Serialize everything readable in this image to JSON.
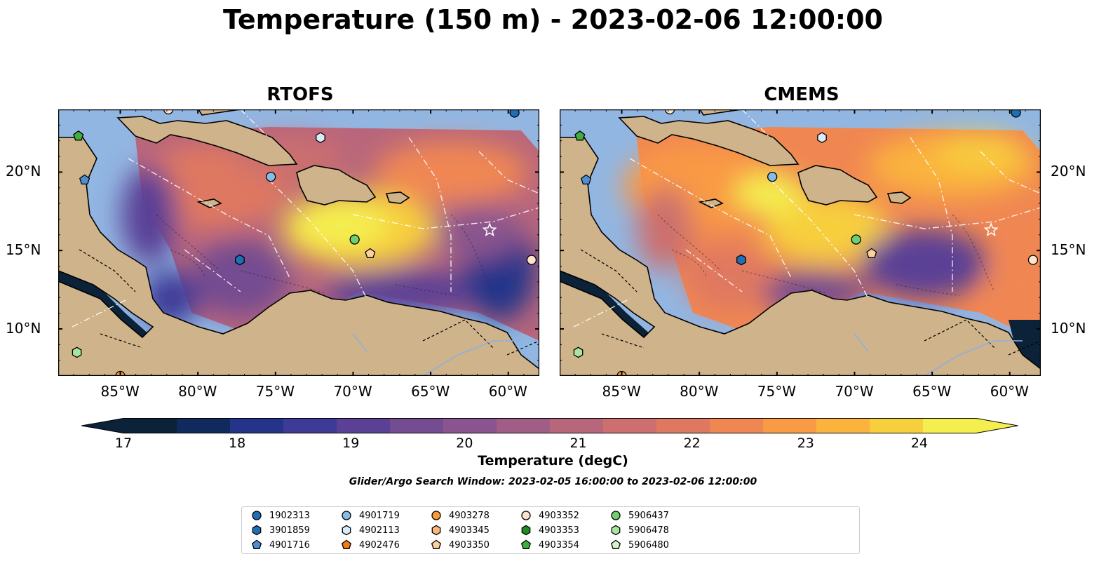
{
  "title": "Temperature (150 m) - 2023-02-06 12:00:00",
  "panels": [
    {
      "title": "RTOFS"
    },
    {
      "title": "CMEMS"
    }
  ],
  "axes": {
    "lon_ticks": [
      "85°W",
      "80°W",
      "75°W",
      "70°W",
      "65°W",
      "60°W"
    ],
    "lat_ticks": [
      "20°N",
      "15°N",
      "10°N"
    ],
    "lon_range": [
      -89,
      -58
    ],
    "lat_range": [
      7,
      24
    ]
  },
  "colorbar": {
    "label": "Temperature (degC)",
    "ticks": [
      "17",
      "18",
      "19",
      "20",
      "21",
      "22",
      "23",
      "24"
    ],
    "min": 17,
    "max": 24.5,
    "extend": "both",
    "colors": [
      "#0b2238",
      "#102a5e",
      "#24348a",
      "#3d3a98",
      "#5a4196",
      "#744c91",
      "#8a558e",
      "#a05e87",
      "#b8667c",
      "#cc6f6e",
      "#df7860",
      "#f08752",
      "#f99a45",
      "#fbb33e",
      "#f7cf3d",
      "#f4ee4f"
    ]
  },
  "search_window": "Glider/Argo Search Window: 2023-02-05 16:00:00 to 2023-02-06 12:00:00",
  "legend": {
    "items": [
      {
        "id": "1902313",
        "shape": "circle",
        "color": "#1f6fb4"
      },
      {
        "id": "3901859",
        "shape": "hexagon",
        "color": "#1f6fb4"
      },
      {
        "id": "4901716",
        "shape": "pentagon",
        "color": "#4d8fd0"
      },
      {
        "id": "4901719",
        "shape": "circle",
        "color": "#86bde8"
      },
      {
        "id": "4902113",
        "shape": "hexagon",
        "color": "#dbeaf8"
      },
      {
        "id": "4902476",
        "shape": "pentagon",
        "color": "#f07d14"
      },
      {
        "id": "4903278",
        "shape": "circle",
        "color": "#fb9a38"
      },
      {
        "id": "4903345",
        "shape": "hexagon",
        "color": "#fcb57a"
      },
      {
        "id": "4903350",
        "shape": "pentagon",
        "color": "#fdd0a2"
      },
      {
        "id": "4903352",
        "shape": "circle",
        "color": "#fde2cc"
      },
      {
        "id": "4903353",
        "shape": "hexagon",
        "color": "#238b23"
      },
      {
        "id": "4903354",
        "shape": "pentagon",
        "color": "#3fae3f"
      },
      {
        "id": "5906437",
        "shape": "circle",
        "color": "#6fcf6f"
      },
      {
        "id": "5906478",
        "shape": "hexagon",
        "color": "#a8e6a0"
      },
      {
        "id": "5906480",
        "shape": "pentagon",
        "color": "#d4f5cc"
      }
    ]
  },
  "markers": [
    {
      "id": "4903352",
      "lon": -81.9,
      "lat": 24.0
    },
    {
      "id": "1902313",
      "lon": -59.6,
      "lat": 23.8
    },
    {
      "id": "4903354",
      "lon": -87.7,
      "lat": 22.3
    },
    {
      "id": "4902113",
      "lon": -72.1,
      "lat": 22.2
    },
    {
      "id": "4901716",
      "lon": -87.3,
      "lat": 19.5
    },
    {
      "id": "4901719",
      "lon": -75.3,
      "lat": 19.7
    },
    {
      "id": "5906437",
      "lon": -69.9,
      "lat": 15.7
    },
    {
      "id": "4903350",
      "lon": -68.9,
      "lat": 14.8
    },
    {
      "id": "3901859",
      "lon": -77.3,
      "lat": 14.4
    },
    {
      "id": "4903352",
      "lon": -58.5,
      "lat": 14.4
    },
    {
      "id": "5906478",
      "lon": -87.8,
      "lat": 8.5
    },
    {
      "id": "4903278",
      "lon": -85.0,
      "lat": 7.0
    }
  ]
}
